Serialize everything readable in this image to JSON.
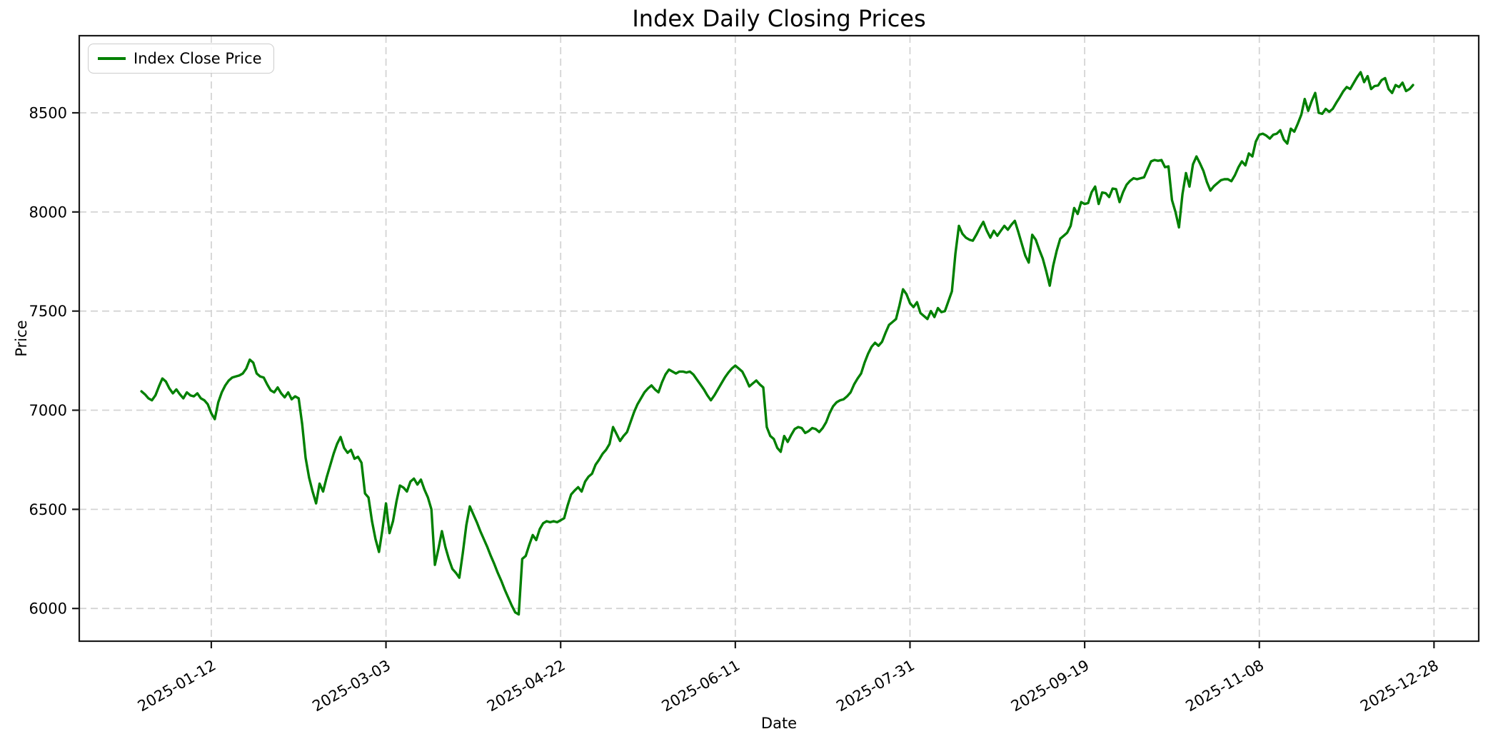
{
  "chart_data": {
    "type": "line",
    "title": "Index Daily Closing Prices",
    "xlabel": "Date",
    "ylabel": "Price",
    "grid": true,
    "grid_style": "dashed",
    "legend_position": "upper left",
    "y_ticks": [
      6000,
      6500,
      7000,
      7500,
      8000,
      8500
    ],
    "ylim": [
      5835,
      8889
    ],
    "xlim_days": [
      -17.8,
      382.8
    ],
    "x_tick_labels": [
      "2025-01-12",
      "2025-03-03",
      "2025-04-22",
      "2025-06-11",
      "2025-07-31",
      "2025-09-19",
      "2025-11-08",
      "2025-12-28"
    ],
    "x_tick_day_indices": [
      20,
      70,
      120,
      170,
      220,
      270,
      320,
      370
    ],
    "x_tick_rotation_deg": 30,
    "series": [
      {
        "name": "Index Close Price",
        "color": "#008000",
        "values": [
          7095,
          7080,
          7060,
          7050,
          7075,
          7120,
          7160,
          7145,
          7110,
          7085,
          7105,
          7080,
          7060,
          7090,
          7075,
          7070,
          7085,
          7060,
          7050,
          7030,
          6985,
          6955,
          7040,
          7090,
          7125,
          7150,
          7165,
          7170,
          7175,
          7185,
          7210,
          7255,
          7240,
          7185,
          7170,
          7165,
          7130,
          7100,
          7090,
          7115,
          7085,
          7065,
          7090,
          7055,
          7070,
          7060,
          6930,
          6760,
          6660,
          6590,
          6530,
          6630,
          6590,
          6660,
          6720,
          6780,
          6830,
          6865,
          6810,
          6785,
          6800,
          6755,
          6765,
          6735,
          6580,
          6560,
          6440,
          6350,
          6285,
          6400,
          6530,
          6380,
          6440,
          6540,
          6620,
          6610,
          6590,
          6640,
          6655,
          6625,
          6650,
          6600,
          6560,
          6500,
          6220,
          6300,
          6390,
          6310,
          6250,
          6200,
          6180,
          6155,
          6280,
          6420,
          6515,
          6475,
          6435,
          6390,
          6350,
          6310,
          6265,
          6225,
          6180,
          6140,
          6095,
          6055,
          6015,
          5980,
          5970,
          6250,
          6265,
          6320,
          6370,
          6345,
          6400,
          6430,
          6440,
          6435,
          6440,
          6435,
          6445,
          6455,
          6520,
          6575,
          6595,
          6612,
          6590,
          6640,
          6665,
          6680,
          6725,
          6750,
          6780,
          6800,
          6830,
          6915,
          6880,
          6845,
          6870,
          6890,
          6940,
          6990,
          7030,
          7060,
          7090,
          7110,
          7125,
          7105,
          7090,
          7140,
          7180,
          7205,
          7195,
          7185,
          7195,
          7195,
          7190,
          7195,
          7180,
          7155,
          7130,
          7105,
          7075,
          7050,
          7075,
          7105,
          7135,
          7165,
          7190,
          7210,
          7225,
          7210,
          7195,
          7160,
          7120,
          7135,
          7150,
          7130,
          7115,
          6915,
          6870,
          6855,
          6810,
          6790,
          6870,
          6840,
          6875,
          6905,
          6915,
          6910,
          6885,
          6895,
          6910,
          6905,
          6890,
          6910,
          6940,
          6985,
          7020,
          7040,
          7050,
          7055,
          7070,
          7090,
          7130,
          7160,
          7185,
          7240,
          7285,
          7320,
          7340,
          7325,
          7345,
          7390,
          7430,
          7445,
          7460,
          7530,
          7610,
          7585,
          7540,
          7520,
          7545,
          7490,
          7475,
          7460,
          7500,
          7470,
          7515,
          7495,
          7500,
          7550,
          7600,
          7790,
          7930,
          7890,
          7870,
          7860,
          7855,
          7885,
          7920,
          7950,
          7905,
          7870,
          7905,
          7880,
          7905,
          7930,
          7910,
          7935,
          7955,
          7900,
          7840,
          7780,
          7745,
          7885,
          7860,
          7810,
          7765,
          7700,
          7628,
          7730,
          7805,
          7865,
          7880,
          7895,
          7930,
          8020,
          7990,
          8050,
          8040,
          8045,
          8100,
          8128,
          8040,
          8098,
          8095,
          8075,
          8118,
          8115,
          8050,
          8100,
          8137,
          8157,
          8170,
          8165,
          8170,
          8175,
          8215,
          8255,
          8262,
          8258,
          8262,
          8226,
          8230,
          8060,
          8000,
          7922,
          8090,
          8196,
          8128,
          8240,
          8280,
          8245,
          8206,
          8150,
          8108,
          8130,
          8145,
          8160,
          8165,
          8165,
          8155,
          8185,
          8225,
          8255,
          8235,
          8295,
          8280,
          8355,
          8390,
          8395,
          8385,
          8370,
          8390,
          8395,
          8412,
          8365,
          8345,
          8420,
          8405,
          8445,
          8490,
          8570,
          8510,
          8560,
          8600,
          8500,
          8495,
          8520,
          8505,
          8520,
          8550,
          8578,
          8608,
          8630,
          8620,
          8650,
          8680,
          8705,
          8655,
          8685,
          8620,
          8635,
          8638,
          8665,
          8675,
          8620,
          8600,
          8640,
          8630,
          8652,
          8610,
          8620,
          8640
        ]
      }
    ]
  },
  "colors": {
    "line": "#008000",
    "grid": "#d4d4d4",
    "spine": "#1a1a1a",
    "text": "#000000",
    "legend_border": "#cccccc",
    "background": "#ffffff"
  }
}
